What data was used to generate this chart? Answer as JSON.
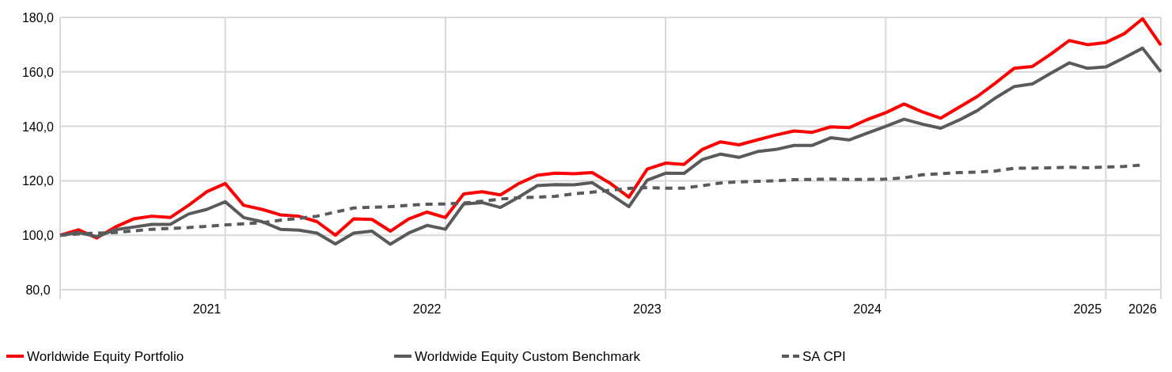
{
  "chart_data": {
    "type": "line",
    "categories": [
      null,
      null,
      null,
      null,
      null,
      null,
      null,
      null,
      "2021",
      null,
      null,
      null,
      null,
      null,
      null,
      null,
      null,
      null,
      null,
      null,
      "2022",
      null,
      null,
      null,
      null,
      null,
      null,
      null,
      null,
      null,
      null,
      null,
      "2023",
      null,
      null,
      null,
      null,
      null,
      null,
      null,
      null,
      null,
      null,
      null,
      "2024",
      null,
      null,
      null,
      null,
      null,
      null,
      null,
      null,
      null,
      null,
      null,
      "2025",
      null,
      null,
      "2026",
      null
    ],
    "series": [
      {
        "name": "Worldwide Equity Portfolio",
        "color": "#ff0000",
        "line_style": "solid",
        "values": [
          100,
          102,
          99,
          103,
          106,
          107,
          106.5,
          111,
          116,
          119,
          111,
          109.5,
          107.5,
          107,
          105,
          100,
          106,
          105.8,
          101.5,
          106,
          108.5,
          106.5,
          115.2,
          116,
          114.8,
          119,
          122,
          122.8,
          122.6,
          123,
          119,
          114,
          124.3,
          126.5,
          126,
          131.5,
          134.3,
          133.2,
          135,
          136.8,
          138.3,
          137.8,
          139.8,
          139.5,
          142.5,
          145,
          148.2,
          145.3,
          143,
          147,
          151,
          156,
          161.3,
          162,
          166.5,
          171.5,
          170,
          170.8,
          174,
          179.5,
          169.8
        ]
      },
      {
        "name": "Worldwide Equity Custom Benchmark",
        "color": "#5a5a5a",
        "line_style": "solid",
        "values": [
          100,
          101,
          99.5,
          102,
          103,
          104,
          104,
          107.8,
          109.5,
          112.3,
          106.5,
          105,
          102.2,
          101.9,
          100.8,
          96.8,
          100.8,
          101.5,
          96.7,
          100.8,
          103.6,
          102.2,
          111.5,
          112,
          110.2,
          114,
          118.2,
          118.6,
          118.5,
          119.3,
          115,
          110.5,
          120.2,
          122.8,
          122.7,
          127.8,
          129.8,
          128.6,
          130.7,
          131.5,
          133,
          133,
          135.8,
          135,
          137.5,
          140,
          142.6,
          140.8,
          139.3,
          142.3,
          145.8,
          150.5,
          154.6,
          155.6,
          159.5,
          163.3,
          161.3,
          161.8,
          165.2,
          168.7,
          160
        ]
      },
      {
        "name": "SA CPI",
        "color": "#5a5a5a",
        "line_style": "dashed",
        "values": [
          100,
          100.5,
          100.8,
          101,
          101.6,
          102.2,
          102.5,
          102.8,
          103.3,
          103.8,
          104.2,
          104.6,
          105.5,
          106.2,
          107,
          108.5,
          110,
          110.3,
          110.5,
          111,
          111.4,
          111.5,
          111.8,
          112.5,
          113.3,
          113.8,
          114,
          114.3,
          115.2,
          115.8,
          116.5,
          117.2,
          117.5,
          117.3,
          117.3,
          118.2,
          119.2,
          119.6,
          119.8,
          120,
          120.4,
          120.5,
          120.6,
          120.5,
          120.5,
          120.6,
          121.1,
          122.2,
          122.6,
          123,
          123.2,
          123.6,
          124.6,
          124.6,
          124.8,
          125,
          124.8,
          125,
          125.3,
          125.8,
          null
        ]
      }
    ],
    "ylim": [
      80,
      180
    ],
    "yticks": [
      {
        "value": 80,
        "label": "80,0"
      },
      {
        "value": 100,
        "label": "100,0"
      },
      {
        "value": 120,
        "label": "120,0"
      },
      {
        "value": 140,
        "label": "140,0"
      },
      {
        "value": 160,
        "label": "160,0"
      },
      {
        "value": 180,
        "label": "180,0"
      }
    ],
    "grid": true,
    "legend": "bottom left",
    "marker": "none"
  }
}
